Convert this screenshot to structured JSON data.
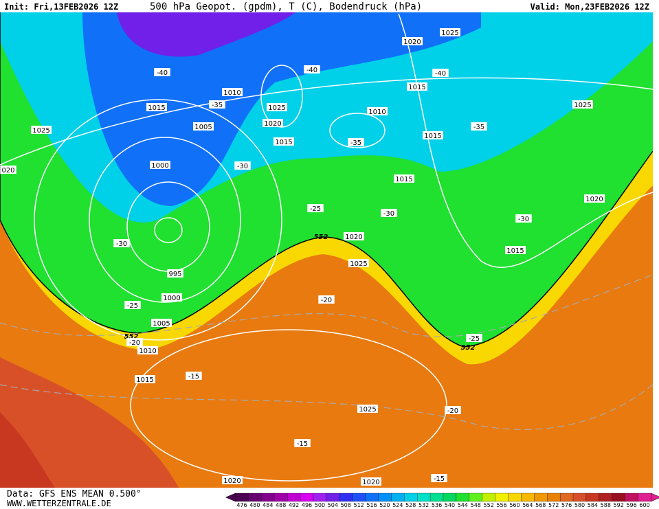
{
  "header": {
    "init": "Init: Fri,13FEB2026 12Z",
    "title": "500 hPa Geopot. (gpdm), T (C), Bodendruck (hPa)",
    "valid": "Valid: Mon,23FEB2026 12Z"
  },
  "footer": {
    "data": "Data: GFS ENS MEAN 0.500°",
    "site": "WWW.WETTERZENTRALE.DE"
  },
  "colorbar": {
    "values": [
      476,
      480,
      484,
      488,
      492,
      496,
      500,
      504,
      508,
      512,
      516,
      520,
      524,
      528,
      532,
      536,
      540,
      544,
      548,
      552,
      556,
      560,
      564,
      568,
      572,
      576,
      580,
      584,
      588,
      592,
      596,
      600
    ],
    "colors": [
      "#4a0050",
      "#660070",
      "#82008c",
      "#a000aa",
      "#c000d0",
      "#d800f0",
      "#a020f0",
      "#7020e8",
      "#3030f0",
      "#2050f8",
      "#1070f8",
      "#0090f8",
      "#00b0f0",
      "#00d0e8",
      "#00e0c8",
      "#00e090",
      "#00d860",
      "#20e030",
      "#60f020",
      "#c0f000",
      "#f0f000",
      "#f8d800",
      "#f8b800",
      "#f09800",
      "#e88000",
      "#e06820",
      "#d85028",
      "#c83820",
      "#b02020",
      "#981020",
      "#c01060",
      "#e02090"
    ]
  },
  "contour_labels": [
    "-40",
    "1015",
    "-35",
    "1010",
    "1025",
    "1005",
    "1025",
    "1020",
    "-40",
    "1015",
    "1000",
    "-30",
    "020",
    "1010",
    "-35",
    "1020",
    "1025",
    "-40",
    "1015",
    "1025",
    "-35",
    "1015",
    "1015",
    "-25",
    "-30",
    "1020",
    "-30",
    "552",
    "1020",
    "-30",
    "1015",
    "1025",
    "995",
    "1000",
    "-25",
    "-20",
    "1005",
    "552",
    "-20",
    "-25",
    "552",
    "1010",
    "1015",
    "-15",
    "1025",
    "-20",
    "-15",
    "1020",
    "1020",
    "-15"
  ]
}
